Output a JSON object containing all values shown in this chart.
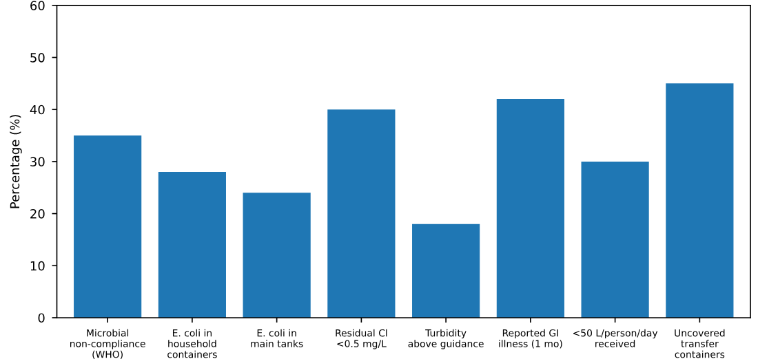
{
  "chart_data": {
    "type": "bar",
    "ylabel": "Percentage (%)",
    "categories": [
      "Microbial\nnon-compliance\n(WHO)",
      "E. coli in\nhousehold\ncontainers",
      "E. coli in\nmain tanks",
      "Residual Cl\n<0.5 mg/L",
      "Turbidity\nabove guidance",
      "Reported GI\nillness (1 mo)",
      "<50 L/person/day\nreceived",
      "Uncovered\ntransfer\ncontainers"
    ],
    "values": [
      35,
      28,
      24,
      40,
      18,
      42,
      30,
      45
    ],
    "color": "#1f77b4",
    "ylim": [
      0,
      60
    ],
    "yticks": [
      0,
      10,
      20,
      30,
      40,
      50,
      60
    ],
    "grid": false
  }
}
